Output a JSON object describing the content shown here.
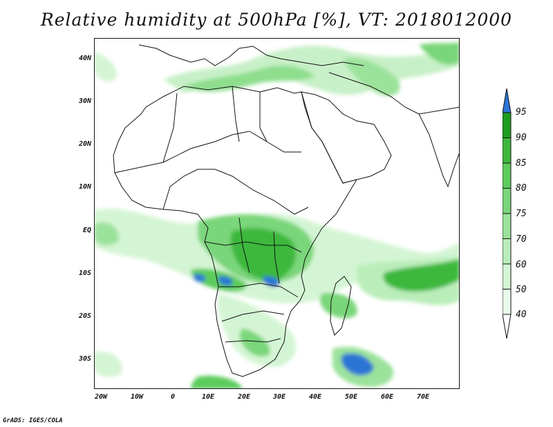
{
  "title": "Relative humidity at 500hPa [%], VT: 2018012000",
  "credit": "GrADS: IGES/COLA",
  "axes": {
    "lat_labels": [
      "40N",
      "30N",
      "20N",
      "10N",
      "EQ",
      "10S",
      "20S",
      "30S"
    ],
    "lon_labels": [
      "20W",
      "10W",
      "0",
      "10E",
      "20E",
      "30E",
      "40E",
      "50E",
      "60E",
      "70E"
    ]
  },
  "colorbar": {
    "levels": [
      "95",
      "90",
      "85",
      "80",
      "75",
      "70",
      "60",
      "50",
      "40"
    ],
    "colors": [
      "#1f9c1f",
      "#3db83d",
      "#5ccc5c",
      "#7ad67a",
      "#9be29b",
      "#baedba",
      "#d4f5d4",
      "#ebfbeb"
    ],
    "above_color": "#2c74d4",
    "below_color": "#ffffff"
  },
  "map": {
    "region": "Africa, Middle East, Arabian Peninsula",
    "lon_range": [
      -22,
      80
    ],
    "lat_range": [
      -37,
      45
    ],
    "field": "Relative humidity at 500hPa"
  }
}
